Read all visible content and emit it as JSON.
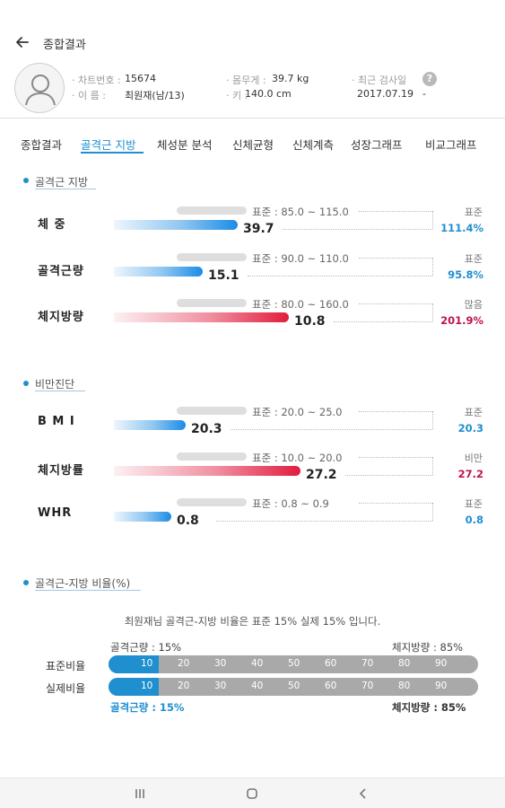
{
  "header": {
    "title": "종합결과"
  },
  "profile": {
    "chart_label": "· 차트번호 :",
    "chart_value": "15674",
    "name_label": "· 이      름 :",
    "name_value": "최원재(남/13)",
    "weight_label": "· 몸무게 :",
    "weight_value": "39.7 kg",
    "height_label": "· 키 :",
    "height_value": "140.0 cm",
    "recent_label": "· 최근 검사일",
    "recent_value": "2017.07.19",
    "recent_suffix": "-",
    "help": "?"
  },
  "tabs": [
    {
      "label": "종합결과"
    },
    {
      "label": "골격근 지방"
    },
    {
      "label": "체성분 분석"
    },
    {
      "label": "신체균형"
    },
    {
      "label": "신체계측"
    },
    {
      "label": "성장그래프"
    },
    {
      "label": "비교그래프"
    }
  ],
  "sections": {
    "muscle_fat": "골격근 지방",
    "obesity": "비만진단",
    "ratio": "골격근-지방 비율(%)"
  },
  "muscle_rows": [
    {
      "label": "체 중",
      "value": "39.7",
      "level": 0.43,
      "color": "blue",
      "range": "표준 : 85.0 ~ 115.0",
      "status": "표준",
      "percent": "111.4%"
    },
    {
      "label": "골격근량",
      "value": "15.1",
      "level": 0.31,
      "color": "blue",
      "range": "표준 : 90.0 ~ 110.0",
      "status": "표준",
      "percent": "95.8%"
    },
    {
      "label": "체지방량",
      "value": "10.8",
      "level": 0.61,
      "color": "red",
      "range": "표준 : 80.0 ~ 160.0",
      "status": "많음",
      "percent": "201.9%"
    }
  ],
  "obesity_rows": [
    {
      "label": "B M I",
      "value": "20.3",
      "level": 0.25,
      "color": "blue",
      "range": "표준 : 20.0 ~ 25.0",
      "status": "표준",
      "percent": "20.3"
    },
    {
      "label": "체지방률",
      "value": "27.2",
      "level": 0.65,
      "color": "red",
      "range": "표준 : 10.0 ~ 20.0",
      "status": "비만",
      "percent": "27.2"
    },
    {
      "label": "WHR",
      "value": "0.8",
      "level": 0.2,
      "color": "blue",
      "range": "표준 : 0.8 ~ 0.9",
      "status": "표준",
      "percent": "0.8"
    }
  ],
  "ratio": {
    "description": "최원재님 골격근-지방 비율은 표준 15% 실제 15% 입니다.",
    "std_muscle": "골격근량 : 15%",
    "std_fat": "체지방량 : 85%",
    "std_label": "표준비율",
    "act_label": "실제비율",
    "std_level": 0.135,
    "act_level": 0.135,
    "ticks": [
      "10",
      "20",
      "30",
      "40",
      "50",
      "60",
      "70",
      "80",
      "90"
    ],
    "act_muscle": "골격근량 : 15%",
    "act_fat": "체지방량 : 85%"
  },
  "colors": {
    "accent": "#1f8fd0",
    "over": "#c0134d"
  }
}
